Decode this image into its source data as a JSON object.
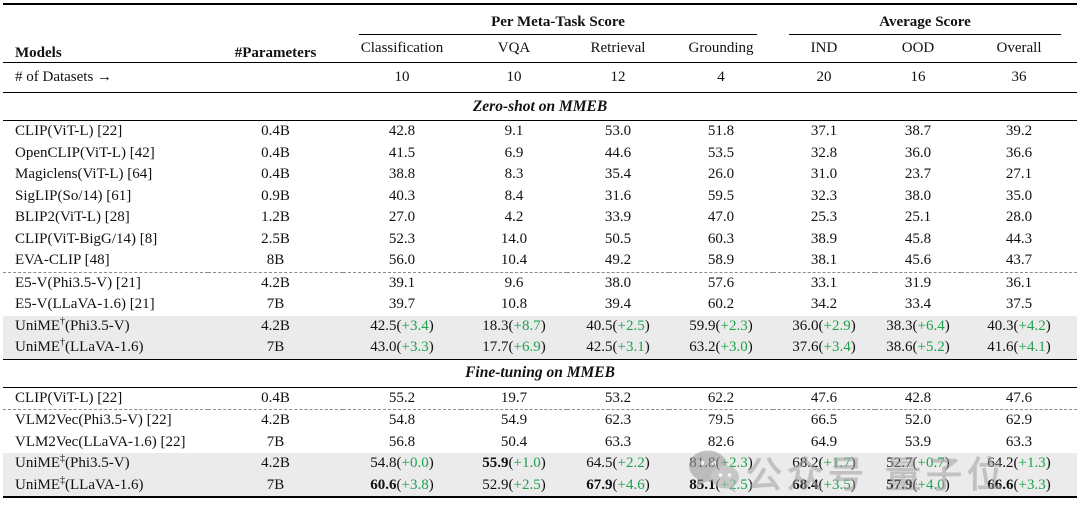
{
  "colors": {
    "accent_green": "#1ea24c",
    "highlight_row_bg": "#ebebeb",
    "rule_black": "#000000",
    "dashed_gray": "#8c8c8c",
    "watermark_gray": "#9e9e9e"
  },
  "watermark": {
    "icon": "wechat-icon",
    "text_1": "公众号",
    "text_2": "量子位"
  },
  "table": {
    "columns": [
      {
        "label": "Models"
      },
      {
        "label": "#Parameters"
      },
      {
        "label": "Classification"
      },
      {
        "label": "VQA"
      },
      {
        "label": "Retrieval"
      },
      {
        "label": "Grounding"
      },
      {
        "label": "IND"
      },
      {
        "label": "OOD"
      },
      {
        "label": "Overall"
      }
    ],
    "column_groups": [
      {
        "label": "Per Meta-Task Score"
      },
      {
        "label": "Average Score"
      }
    ],
    "datasets_row": {
      "label": "# of Datasets →",
      "counts": [
        "10",
        "10",
        "12",
        "4",
        "20",
        "16",
        "36"
      ]
    },
    "sections": [
      {
        "title": "Zero-shot on MMEB",
        "rows": [
          {
            "m": "CLIP(ViT-L) [22]",
            "s": "",
            "p2": "",
            "params": "0.4B",
            "hl": false,
            "dashed": false,
            "cells": [
              {
                "v": "42.8"
              },
              {
                "v": "9.1"
              },
              {
                "v": "53.0"
              },
              {
                "v": "51.8"
              },
              {
                "v": "37.1"
              },
              {
                "v": "38.7"
              },
              {
                "v": "39.2"
              }
            ]
          },
          {
            "m": "OpenCLIP(ViT-L) [42]",
            "s": "",
            "p2": "",
            "params": "0.4B",
            "hl": false,
            "dashed": false,
            "cells": [
              {
                "v": "41.5"
              },
              {
                "v": "6.9"
              },
              {
                "v": "44.6"
              },
              {
                "v": "53.5"
              },
              {
                "v": "32.8"
              },
              {
                "v": "36.0"
              },
              {
                "v": "36.6"
              }
            ]
          },
          {
            "m": "Magiclens(ViT-L) [64]",
            "s": "",
            "p2": "",
            "params": "0.4B",
            "hl": false,
            "dashed": false,
            "cells": [
              {
                "v": "38.8"
              },
              {
                "v": "8.3"
              },
              {
                "v": "35.4"
              },
              {
                "v": "26.0"
              },
              {
                "v": "31.0"
              },
              {
                "v": "23.7"
              },
              {
                "v": "27.1"
              }
            ]
          },
          {
            "m": "SigLIP(So/14) [61]",
            "s": "",
            "p2": "",
            "params": "0.9B",
            "hl": false,
            "dashed": false,
            "cells": [
              {
                "v": "40.3"
              },
              {
                "v": "8.4"
              },
              {
                "v": "31.6"
              },
              {
                "v": "59.5"
              },
              {
                "v": "32.3"
              },
              {
                "v": "38.0"
              },
              {
                "v": "35.0"
              }
            ]
          },
          {
            "m": "BLIP2(ViT-L) [28]",
            "s": "",
            "p2": "",
            "params": "1.2B",
            "hl": false,
            "dashed": false,
            "cells": [
              {
                "v": "27.0"
              },
              {
                "v": "4.2"
              },
              {
                "v": "33.9"
              },
              {
                "v": "47.0"
              },
              {
                "v": "25.3"
              },
              {
                "v": "25.1"
              },
              {
                "v": "28.0"
              }
            ]
          },
          {
            "m": "CLIP(ViT-BigG/14) [8]",
            "s": "",
            "p2": "",
            "params": "2.5B",
            "hl": false,
            "dashed": false,
            "cells": [
              {
                "v": "52.3"
              },
              {
                "v": "14.0"
              },
              {
                "v": "50.5"
              },
              {
                "v": "60.3"
              },
              {
                "v": "38.9"
              },
              {
                "v": "45.8"
              },
              {
                "v": "44.3"
              }
            ]
          },
          {
            "m": "EVA-CLIP [48]",
            "s": "",
            "p2": "",
            "params": "8B",
            "hl": false,
            "dashed": false,
            "cells": [
              {
                "v": "56.0"
              },
              {
                "v": "10.4"
              },
              {
                "v": "49.2"
              },
              {
                "v": "58.9"
              },
              {
                "v": "38.1"
              },
              {
                "v": "45.6"
              },
              {
                "v": "43.7"
              }
            ]
          },
          {
            "m": "E5-V(Phi3.5-V) [21]",
            "s": "",
            "p2": "",
            "params": "4.2B",
            "hl": false,
            "dashed": true,
            "cells": [
              {
                "v": "39.1"
              },
              {
                "v": "9.6"
              },
              {
                "v": "38.0"
              },
              {
                "v": "57.6"
              },
              {
                "v": "33.1"
              },
              {
                "v": "31.9"
              },
              {
                "v": "36.1"
              }
            ]
          },
          {
            "m": "E5-V(LLaVA-1.6) [21]",
            "s": "",
            "p2": "",
            "params": "7B",
            "hl": false,
            "dashed": false,
            "cells": [
              {
                "v": "39.7"
              },
              {
                "v": "10.8"
              },
              {
                "v": "39.4"
              },
              {
                "v": "60.2"
              },
              {
                "v": "34.2"
              },
              {
                "v": "33.4"
              },
              {
                "v": "37.5"
              }
            ]
          },
          {
            "m": "UniME",
            "s": "†",
            "p2": "(Phi3.5-V)",
            "params": "4.2B",
            "hl": true,
            "dashed": false,
            "cells": [
              {
                "v": "42.5",
                "d": "+3.4"
              },
              {
                "v": "18.3",
                "d": "+8.7"
              },
              {
                "v": "40.5",
                "d": "+2.5"
              },
              {
                "v": "59.9",
                "d": "+2.3"
              },
              {
                "v": "36.0",
                "d": "+2.9"
              },
              {
                "v": "38.3",
                "d": "+6.4"
              },
              {
                "v": "40.3",
                "d": "+4.2"
              }
            ]
          },
          {
            "m": "UniME",
            "s": "†",
            "p2": "(LLaVA-1.6)",
            "params": "7B",
            "hl": true,
            "dashed": false,
            "cells": [
              {
                "v": "43.0",
                "d": "+3.3"
              },
              {
                "v": "17.7",
                "d": "+6.9"
              },
              {
                "v": "42.5",
                "d": "+3.1"
              },
              {
                "v": "63.2",
                "d": "+3.0"
              },
              {
                "v": "37.6",
                "d": "+3.4"
              },
              {
                "v": "38.6",
                "d": "+5.2"
              },
              {
                "v": "41.6",
                "d": "+4.1"
              }
            ]
          }
        ]
      },
      {
        "title": "Fine-tuning on MMEB",
        "rows": [
          {
            "m": "CLIP(ViT-L) [22]",
            "s": "",
            "p2": "",
            "params": "0.4B",
            "hl": false,
            "dashed": false,
            "cells": [
              {
                "v": "55.2"
              },
              {
                "v": "19.7"
              },
              {
                "v": "53.2"
              },
              {
                "v": "62.2"
              },
              {
                "v": "47.6"
              },
              {
                "v": "42.8"
              },
              {
                "v": "47.6"
              }
            ]
          },
          {
            "m": "VLM2Vec(Phi3.5-V) [22]",
            "s": "",
            "p2": "",
            "params": "4.2B",
            "hl": false,
            "dashed": true,
            "cells": [
              {
                "v": "54.8"
              },
              {
                "v": "54.9"
              },
              {
                "v": "62.3"
              },
              {
                "v": "79.5"
              },
              {
                "v": "66.5"
              },
              {
                "v": "52.0"
              },
              {
                "v": "62.9"
              }
            ]
          },
          {
            "m": "VLM2Vec(LLaVA-1.6) [22]",
            "s": "",
            "p2": "",
            "params": "7B",
            "hl": false,
            "dashed": false,
            "cells": [
              {
                "v": "56.8"
              },
              {
                "v": "50.4"
              },
              {
                "v": "63.3"
              },
              {
                "v": "82.6"
              },
              {
                "v": "64.9"
              },
              {
                "v": "53.9"
              },
              {
                "v": "63.3"
              }
            ]
          },
          {
            "m": "UniME",
            "s": "‡",
            "p2": "(Phi3.5-V)",
            "params": "4.2B",
            "hl": true,
            "dashed": false,
            "cells": [
              {
                "v": "54.8",
                "d": "+0.0"
              },
              {
                "v": "55.9",
                "d": "+1.0",
                "b": true
              },
              {
                "v": "64.5",
                "d": "+2.2"
              },
              {
                "v": "81.8",
                "d": "+2.3"
              },
              {
                "v": "68.2",
                "d": "+1.7"
              },
              {
                "v": "52.7",
                "d": "+0.7"
              },
              {
                "v": "64.2",
                "d": "+1.3"
              }
            ]
          },
          {
            "m": "UniME",
            "s": "‡",
            "p2": "(LLaVA-1.6)",
            "params": "7B",
            "hl": true,
            "dashed": false,
            "cells": [
              {
                "v": "60.6",
                "d": "+3.8",
                "b": true
              },
              {
                "v": "52.9",
                "d": "+2.5"
              },
              {
                "v": "67.9",
                "d": "+4.6",
                "b": true
              },
              {
                "v": "85.1",
                "d": "+2.5",
                "b": true
              },
              {
                "v": "68.4",
                "d": "+3.5",
                "b": true
              },
              {
                "v": "57.9",
                "d": "+4.0",
                "b": true
              },
              {
                "v": "66.6",
                "d": "+3.3",
                "b": true
              }
            ]
          }
        ]
      }
    ]
  }
}
